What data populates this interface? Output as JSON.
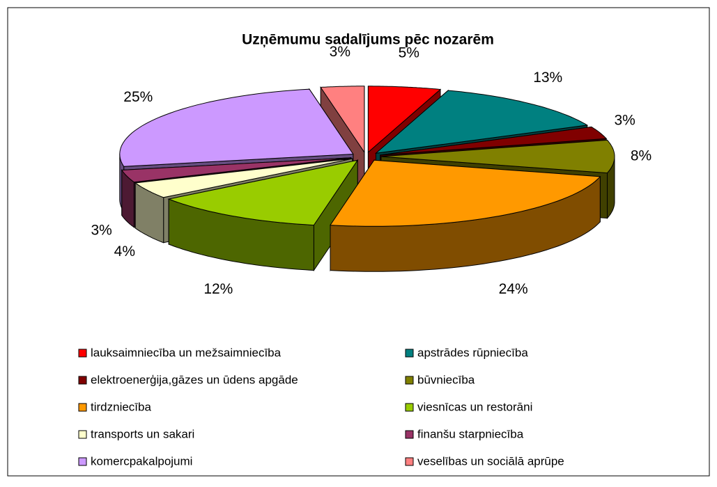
{
  "chart_data": {
    "type": "pie3d",
    "title": "Uzņēmumu sadalījums pēc nozarēm",
    "categories": [
      "lauksaimniecība un mežsaimniecība",
      "apstrādes rūpniecība",
      "elektroenerģija,gāzes un ūdens apgāde",
      "būvniecība",
      "tirdzniecība",
      "viesnīcas un restorāni",
      "transports un sakari",
      "finanšu starpniecība",
      "komercpakalpojumi",
      "veselības un sociālā aprūpe"
    ],
    "values": [
      5,
      13,
      3,
      8,
      24,
      12,
      4,
      3,
      25,
      3
    ],
    "value_labels": [
      "5%",
      "13%",
      "3%",
      "8%",
      "24%",
      "12%",
      "4%",
      "3%",
      "25%",
      "3%"
    ],
    "colors": [
      "#ff0000",
      "#008080",
      "#800000",
      "#808000",
      "#ff9900",
      "#99cc00",
      "#ffffcc",
      "#993366",
      "#cc99ff",
      "#ff8080"
    ],
    "legend": "bottom"
  }
}
